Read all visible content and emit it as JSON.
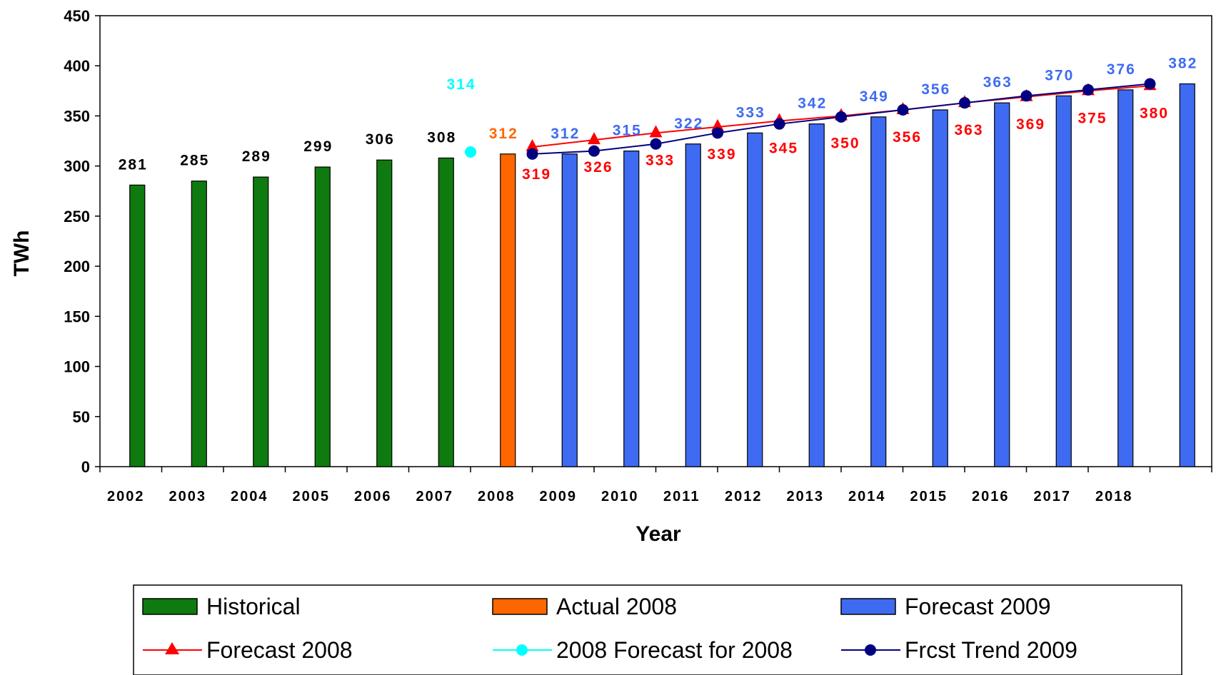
{
  "chart_data": {
    "type": "bar",
    "title": "",
    "xlabel": "Year",
    "ylabel": "TWh",
    "ylim": [
      0,
      450
    ],
    "yticks": [
      0,
      50,
      100,
      150,
      200,
      250,
      300,
      350,
      400,
      450
    ],
    "grid": false,
    "legend_position": "bottom",
    "categories": [
      "2002",
      "2003",
      "2004",
      "2005",
      "2006",
      "2007",
      "2008",
      "2009",
      "2010",
      "2011",
      "2012",
      "2013",
      "2014",
      "2015",
      "2016",
      "2017",
      "2018",
      ""
    ],
    "series": [
      {
        "name": "Historical",
        "kind": "bar",
        "color": "#0f7a0f",
        "values": [
          281,
          285,
          289,
          299,
          306,
          308,
          null,
          null,
          null,
          null,
          null,
          null,
          null,
          null,
          null,
          null,
          null,
          null
        ],
        "labels": [
          "281",
          "285",
          "289",
          "299",
          "306",
          "308",
          "",
          "",
          "",
          "",
          "",
          "",
          "",
          "",
          "",
          "",
          "",
          ""
        ],
        "label_color": "#000000"
      },
      {
        "name": "Actual 2008",
        "kind": "bar",
        "color": "#ff6600",
        "values": [
          null,
          null,
          null,
          null,
          null,
          null,
          312,
          null,
          null,
          null,
          null,
          null,
          null,
          null,
          null,
          null,
          null,
          null
        ],
        "labels": [
          "",
          "",
          "",
          "",
          "",
          "",
          "312",
          "",
          "",
          "",
          "",
          "",
          "",
          "",
          "",
          "",
          "",
          ""
        ],
        "label_color": "#ff6600"
      },
      {
        "name": "Forecast 2009",
        "kind": "bar",
        "color": "#3f6bf2",
        "values": [
          null,
          null,
          null,
          null,
          null,
          null,
          null,
          312,
          315,
          322,
          333,
          342,
          349,
          356,
          363,
          370,
          376,
          382
        ],
        "labels": [
          "",
          "",
          "",
          "",
          "",
          "",
          "",
          "312",
          "315",
          "322",
          "333",
          "342",
          "349",
          "356",
          "363",
          "370",
          "376",
          "382"
        ],
        "label_color": "#3f6bf2"
      },
      {
        "name": "Forecast 2008",
        "kind": "line",
        "color": "#ff0000",
        "marker": "triangle",
        "values": [
          null,
          null,
          null,
          null,
          null,
          null,
          null,
          319,
          326,
          333,
          339,
          345,
          350,
          356,
          363,
          369,
          375,
          380
        ],
        "labels": [
          "",
          "",
          "",
          "",
          "",
          "",
          "",
          "319",
          "326",
          "333",
          "339",
          "345",
          "350",
          "356",
          "363",
          "369",
          "375",
          "380"
        ],
        "label_color": "#ff0000"
      },
      {
        "name": "2008 Forecast for 2008",
        "kind": "line",
        "color": "#00ffff",
        "marker": "circle",
        "values": [
          null,
          null,
          null,
          null,
          null,
          null,
          314,
          null,
          null,
          null,
          null,
          null,
          null,
          null,
          null,
          null,
          null,
          null
        ],
        "labels": [
          "",
          "",
          "",
          "",
          "",
          "",
          "314",
          "",
          "",
          "",
          "",
          "",
          "",
          "",
          "",
          "",
          "",
          ""
        ],
        "label_color": "#00ffff"
      },
      {
        "name": "Frcst Trend 2009",
        "kind": "line",
        "color": "#000080",
        "marker": "circle",
        "values": [
          null,
          null,
          null,
          null,
          null,
          null,
          null,
          312,
          315,
          322,
          333,
          342,
          349,
          356,
          363,
          370,
          376,
          382
        ],
        "labels": [
          "",
          "",
          "",
          "",
          "",
          "",
          "",
          "",
          "",
          "",
          "",
          "",
          "",
          "",
          "",
          "",
          "",
          ""
        ],
        "label_color": "#000080"
      }
    ]
  }
}
